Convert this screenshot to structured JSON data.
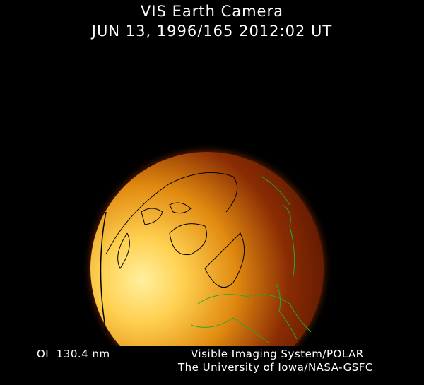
{
  "header": {
    "title": "VIS Earth Camera",
    "timestamp": "JUN 13, 1996/165 2012:02 UT"
  },
  "footer": {
    "wavelength": "OI  130.4 nm",
    "credit_line1": "Visible Imaging System/POLAR",
    "credit_line2": "The University of Iowa/NASA-GSFC"
  },
  "colors": {
    "background": "#000000",
    "dayglow_bright": "#ffe070",
    "dayglow_mid": "#e08a10",
    "night_side": "#5a1400",
    "coastline_day": "#000000",
    "coastline_night": "#2aa82a"
  }
}
